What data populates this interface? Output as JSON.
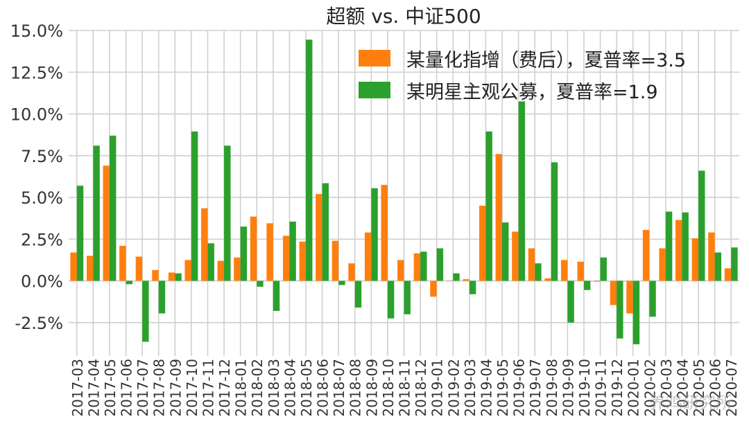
{
  "chart_data": {
    "type": "bar",
    "title": "超额 vs. 中证500",
    "xlabel": "",
    "ylabel": "",
    "ylim": [
      -0.045,
      0.15
    ],
    "yticks": [
      "-2.5%",
      "0.0%",
      "2.5%",
      "5.0%",
      "7.5%",
      "10.0%",
      "12.5%",
      "15.0%"
    ],
    "ytick_values": [
      -0.025,
      0,
      0.025,
      0.05,
      0.075,
      0.1,
      0.125,
      0.15
    ],
    "grid": true,
    "legend_position": "top-right",
    "categories": [
      "2017-03",
      "2017-04",
      "2017-05",
      "2017-06",
      "2017-07",
      "2017-08",
      "2017-09",
      "2017-10",
      "2017-11",
      "2017-12",
      "2018-01",
      "2018-02",
      "2018-03",
      "2018-04",
      "2018-05",
      "2018-06",
      "2018-07",
      "2018-08",
      "2018-09",
      "2018-10",
      "2018-11",
      "2018-12",
      "2019-01",
      "2019-02",
      "2019-03",
      "2019-04",
      "2019-05",
      "2019-06",
      "2019-07",
      "2019-08",
      "2019-09",
      "2019-10",
      "2019-11",
      "2019-12",
      "2020-01",
      "2020-02",
      "2020-03",
      "2020-04",
      "2020-05",
      "2020-06",
      "2020-07"
    ],
    "series": [
      {
        "name": "某量化指增（费后），夏普率=3.5",
        "color": "#ff7f0e",
        "values": [
          0.017,
          0.015,
          0.069,
          0.021,
          0.0145,
          0.0065,
          0.005,
          0.0125,
          0.0435,
          0.012,
          0.014,
          0.0385,
          0.0345,
          0.027,
          0.0235,
          0.052,
          0.024,
          0.0105,
          0.029,
          0.0575,
          0.0125,
          0.0165,
          -0.0095,
          0.0,
          0.001,
          0.045,
          0.076,
          0.0295,
          0.0195,
          0.0015,
          0.0125,
          0.0115,
          -0.0005,
          -0.0145,
          -0.0195,
          0.0305,
          0.0195,
          0.0365,
          0.0255,
          0.029,
          0.0075
        ]
      },
      {
        "name": "某明星主观公募，夏普率=1.9",
        "color": "#2ca02c",
        "values": [
          0.057,
          0.081,
          0.087,
          -0.002,
          -0.0365,
          -0.0195,
          0.0045,
          0.0895,
          0.0225,
          0.081,
          0.0325,
          -0.0035,
          -0.018,
          0.0355,
          0.1445,
          0.0585,
          -0.0025,
          -0.016,
          0.0555,
          -0.0225,
          -0.02,
          0.0175,
          0.0195,
          0.0045,
          -0.008,
          0.0895,
          0.035,
          0.1075,
          0.0105,
          0.071,
          -0.025,
          -0.0055,
          0.014,
          -0.0345,
          -0.038,
          -0.0215,
          0.0415,
          0.041,
          0.066,
          0.017,
          0.02
        ]
      }
    ]
  },
  "watermark": "养鸡研究所"
}
